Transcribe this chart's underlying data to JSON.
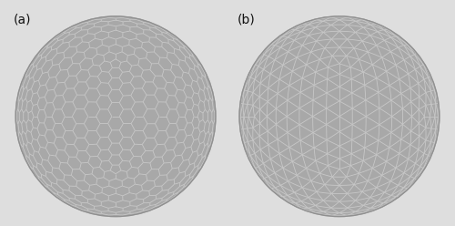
{
  "background_color": "#dedede",
  "sphere_fill_color": "#a8a8a8",
  "sphere_edge_color": "#909090",
  "grid_line_color": "#c8c8c8",
  "label_a": "(a)",
  "label_b": "(b)",
  "label_fontsize": 10,
  "label_color": "#111111",
  "line_width": 0.6,
  "figsize": [
    5.0,
    2.48
  ],
  "dpi": 100,
  "hex_n_sub": 9,
  "tri_n_sub": 8
}
